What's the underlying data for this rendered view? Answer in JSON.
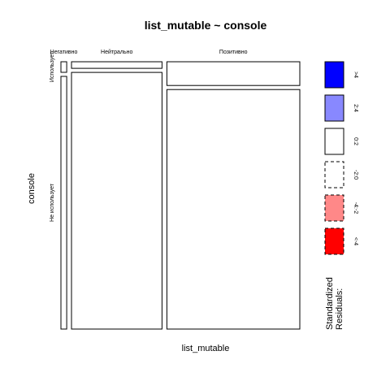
{
  "chart_data": {
    "type": "mosaic",
    "title": "list_mutable ~ console",
    "xlabel": "list_mutable",
    "ylabel": "console",
    "x_categories": [
      "Негативно",
      "Нейтрально",
      "Позитивно"
    ],
    "y_categories": [
      "Использует",
      "Не использует"
    ],
    "column_proportions": [
      0.025,
      0.395,
      0.58
    ],
    "cell_proportions": [
      {
        "column": "Негативно",
        "Использует": 0.04,
        "Не использует": 0.96
      },
      {
        "column": "Нейтрально",
        "Использует": 0.025,
        "Не использует": 0.975
      },
      {
        "column": "Позитивно",
        "Использует": 0.09,
        "Не использует": 0.91
      }
    ],
    "residual_bins": [
      {
        "bin": "Негативно|Использует",
        "class": "<-2:0"
      },
      {
        "bin": "Негативно|Не использует",
        "class": "0:2"
      },
      {
        "bin": "Нейтрально|Использует",
        "class": "<-2:0"
      },
      {
        "bin": "Нейтрально|Не использует",
        "class": "0:2"
      },
      {
        "bin": "Позитивно|Использует",
        "class": "0:2"
      },
      {
        "bin": "Позитивно|Не использует",
        "class": "<-2:0"
      }
    ],
    "legend": {
      "title_line1": "Standardized",
      "title_line2": "Residuals:",
      "placement": "right",
      "entries": [
        {
          "label": ">4",
          "color": "#0000ff",
          "dashed": false
        },
        {
          "label": "2:4",
          "color": "#8888ff",
          "dashed": false
        },
        {
          "label": "0:2",
          "color": "#ffffff",
          "dashed": false
        },
        {
          "label": "-2:0",
          "color": "#ffffff",
          "dashed": true
        },
        {
          "label": "-4:-2",
          "color": "#ff8888",
          "dashed": true
        },
        {
          "label": "<-4",
          "color": "#ff0000",
          "dashed": true
        }
      ]
    }
  }
}
